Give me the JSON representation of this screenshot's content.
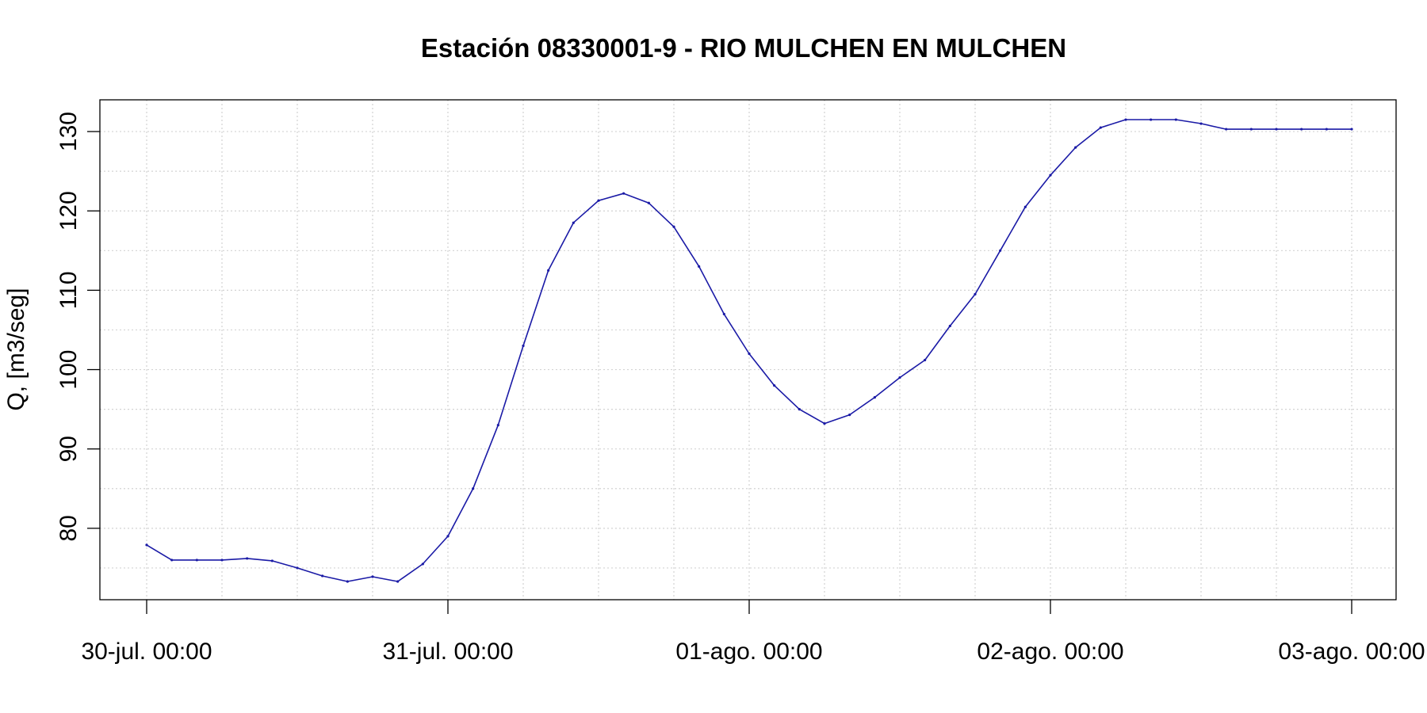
{
  "chart_data": {
    "type": "line",
    "title": "Estación 08330001-9 - RIO MULCHEN EN MULCHEN",
    "ylabel": "Q, [m3/seg]",
    "xlabel": "",
    "xlim": [
      "2024-07-30T00:00",
      "2024-08-03T00:00"
    ],
    "ylim": [
      71,
      134
    ],
    "x_ticks": [
      {
        "value": "2024-07-30T00:00",
        "label": "30-jul. 00:00"
      },
      {
        "value": "2024-07-31T00:00",
        "label": "31-jul. 00:00"
      },
      {
        "value": "2024-08-01T00:00",
        "label": "01-ago. 00:00"
      },
      {
        "value": "2024-08-02T00:00",
        "label": "02-ago. 00:00"
      },
      {
        "value": "2024-08-03T00:00",
        "label": "03-ago. 00:00"
      }
    ],
    "y_ticks": [
      80,
      90,
      100,
      110,
      120,
      130
    ],
    "grid": true,
    "line_color": "#1a1aa6",
    "series": [
      {
        "x": [
          "2024-07-30T00:00",
          "2024-07-30T02:00",
          "2024-07-30T04:00",
          "2024-07-30T06:00",
          "2024-07-30T08:00",
          "2024-07-30T10:00",
          "2024-07-30T12:00",
          "2024-07-30T14:00",
          "2024-07-30T16:00",
          "2024-07-30T18:00",
          "2024-07-30T20:00",
          "2024-07-30T22:00",
          "2024-07-31T00:00",
          "2024-07-31T02:00",
          "2024-07-31T04:00",
          "2024-07-31T06:00",
          "2024-07-31T08:00",
          "2024-07-31T10:00",
          "2024-07-31T12:00",
          "2024-07-31T14:00",
          "2024-07-31T16:00",
          "2024-07-31T18:00",
          "2024-07-31T20:00",
          "2024-07-31T22:00",
          "2024-08-01T00:00",
          "2024-08-01T02:00",
          "2024-08-01T04:00",
          "2024-08-01T06:00",
          "2024-08-01T08:00",
          "2024-08-01T10:00",
          "2024-08-01T12:00",
          "2024-08-01T14:00",
          "2024-08-01T16:00",
          "2024-08-01T18:00",
          "2024-08-01T20:00",
          "2024-08-01T22:00",
          "2024-08-02T00:00",
          "2024-08-02T02:00",
          "2024-08-02T04:00",
          "2024-08-02T06:00",
          "2024-08-02T08:00",
          "2024-08-02T10:00",
          "2024-08-02T12:00",
          "2024-08-02T14:00",
          "2024-08-02T16:00",
          "2024-08-02T18:00",
          "2024-08-02T20:00",
          "2024-08-02T22:00",
          "2024-08-03T00:00"
        ],
        "values": [
          77.9,
          76.0,
          76.0,
          76.0,
          76.2,
          75.9,
          75.0,
          74.0,
          73.3,
          73.9,
          73.3,
          75.5,
          79.0,
          85.0,
          93.0,
          103.0,
          112.5,
          118.5,
          121.3,
          122.2,
          121.0,
          118.0,
          113.0,
          107.0,
          102.0,
          98.0,
          95.0,
          93.2,
          94.3,
          96.5,
          99.0,
          101.2,
          105.5,
          109.5,
          115.0,
          120.5,
          124.5,
          128.0,
          130.5,
          131.5,
          131.5,
          131.5,
          131.0,
          130.3,
          130.3,
          130.3,
          130.3,
          130.3,
          130.3
        ]
      }
    ]
  }
}
